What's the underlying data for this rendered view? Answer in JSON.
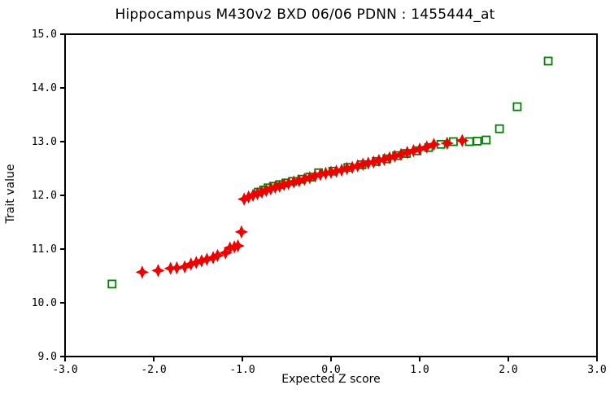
{
  "title": "Hippocampus M430v2 BXD 06/06 PDNN : 1455444_at",
  "colors": {
    "background": "#ffffff",
    "axis": "#000000",
    "text": "#000000",
    "primary_series": "#ee0000",
    "secondary_series": "#008000"
  },
  "chart_data": {
    "type": "scatter",
    "title": "Hippocampus M430v2 BXD 06/06 PDNN : 1455444_at",
    "xlabel": "Expected Z score",
    "ylabel": "Trait value",
    "xlim": [
      -3.0,
      3.0
    ],
    "ylim": [
      9.0,
      15.0
    ],
    "x_ticks": [
      "-3.0",
      "-2.0",
      "-1.0",
      "0.0",
      "1.0",
      "2.0",
      "3.0"
    ],
    "y_ticks": [
      "9.0",
      "10.0",
      "11.0",
      "12.0",
      "13.0",
      "14.0",
      "15.0"
    ],
    "grid": false,
    "legend_position": "none",
    "series": [
      {
        "name": "trait-values-red-diamonds",
        "marker": "star4",
        "color": "#ee0000",
        "points": [
          [
            -2.13,
            10.57
          ],
          [
            -1.95,
            10.6
          ],
          [
            -1.81,
            10.64
          ],
          [
            -1.74,
            10.65
          ],
          [
            -1.65,
            10.67
          ],
          [
            -1.58,
            10.72
          ],
          [
            -1.52,
            10.75
          ],
          [
            -1.46,
            10.78
          ],
          [
            -1.4,
            10.81
          ],
          [
            -1.33,
            10.84
          ],
          [
            -1.28,
            10.88
          ],
          [
            -1.19,
            10.93
          ],
          [
            -1.14,
            11.02
          ],
          [
            -1.09,
            11.04
          ],
          [
            -1.05,
            11.06
          ],
          [
            -1.01,
            11.32
          ],
          [
            -0.98,
            11.93
          ],
          [
            -0.93,
            11.97
          ],
          [
            -0.88,
            12.0
          ],
          [
            -0.83,
            12.03
          ],
          [
            -0.78,
            12.06
          ],
          [
            -0.73,
            12.09
          ],
          [
            -0.68,
            12.12
          ],
          [
            -0.63,
            12.15
          ],
          [
            -0.58,
            12.17
          ],
          [
            -0.53,
            12.2
          ],
          [
            -0.48,
            12.22
          ],
          [
            -0.42,
            12.25
          ],
          [
            -0.36,
            12.27
          ],
          [
            -0.3,
            12.3
          ],
          [
            -0.24,
            12.33
          ],
          [
            -0.18,
            12.36
          ],
          [
            -0.12,
            12.39
          ],
          [
            -0.06,
            12.41
          ],
          [
            0.0,
            12.43
          ],
          [
            0.06,
            12.45
          ],
          [
            0.12,
            12.47
          ],
          [
            0.18,
            12.5
          ],
          [
            0.24,
            12.52
          ],
          [
            0.3,
            12.55
          ],
          [
            0.36,
            12.58
          ],
          [
            0.42,
            12.6
          ],
          [
            0.48,
            12.62
          ],
          [
            0.54,
            12.65
          ],
          [
            0.6,
            12.67
          ],
          [
            0.66,
            12.7
          ],
          [
            0.72,
            12.73
          ],
          [
            0.79,
            12.76
          ],
          [
            0.86,
            12.8
          ],
          [
            0.93,
            12.83
          ],
          [
            1.0,
            12.86
          ],
          [
            1.08,
            12.9
          ],
          [
            1.16,
            12.95
          ],
          [
            1.31,
            12.97
          ],
          [
            1.48,
            13.02
          ]
        ]
      },
      {
        "name": "secondary-green-squares",
        "marker": "open-square",
        "color": "#008000",
        "points": [
          [
            -2.47,
            10.35
          ],
          [
            -0.82,
            12.06
          ],
          [
            -0.76,
            12.1
          ],
          [
            -0.71,
            12.14
          ],
          [
            -0.65,
            12.17
          ],
          [
            -0.58,
            12.2
          ],
          [
            -0.51,
            12.23
          ],
          [
            -0.43,
            12.26
          ],
          [
            -0.33,
            12.3
          ],
          [
            -0.24,
            12.34
          ],
          [
            -0.14,
            12.42
          ],
          [
            0.02,
            12.45
          ],
          [
            0.19,
            12.52
          ],
          [
            0.35,
            12.57
          ],
          [
            0.51,
            12.63
          ],
          [
            0.63,
            12.68
          ],
          [
            0.74,
            12.74
          ],
          [
            0.85,
            12.78
          ],
          [
            0.97,
            12.83
          ],
          [
            1.1,
            12.89
          ],
          [
            1.24,
            12.95
          ],
          [
            1.38,
            13.0
          ],
          [
            1.56,
            13.0
          ],
          [
            1.65,
            13.01
          ],
          [
            1.75,
            13.03
          ],
          [
            1.9,
            13.24
          ],
          [
            2.1,
            13.65
          ],
          [
            2.45,
            14.5
          ]
        ]
      }
    ]
  }
}
